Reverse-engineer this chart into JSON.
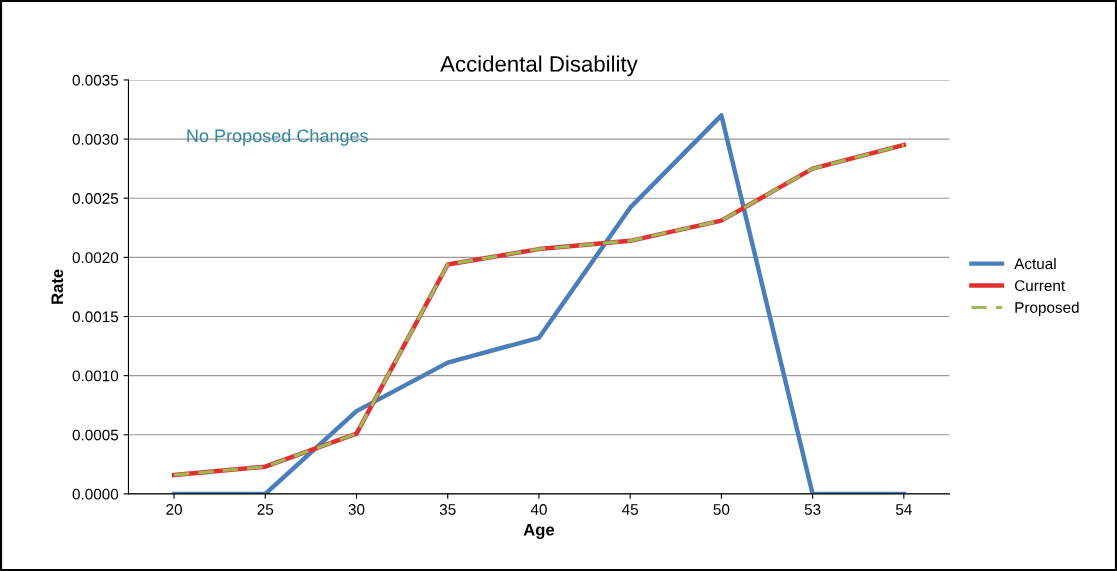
{
  "chart_data": {
    "type": "line",
    "title": "Accidental Disability",
    "xlabel": "Age",
    "ylabel": "Rate",
    "categories": [
      "20",
      "25",
      "30",
      "35",
      "40",
      "45",
      "50",
      "53",
      "54"
    ],
    "series": [
      {
        "name": "Actual",
        "color": "#4a7ebb",
        "line_style": "solid",
        "values": [
          0,
          0,
          0.0007,
          0.00111,
          0.00132,
          0.00242,
          0.0032,
          0,
          0
        ]
      },
      {
        "name": "Current",
        "color": "#e03030",
        "line_style": "solid",
        "values": [
          0.00016,
          0.00023,
          0.00051,
          0.00194,
          0.00207,
          0.00214,
          0.00231,
          0.00275,
          0.00295
        ]
      },
      {
        "name": "Proposed",
        "color": "#9bbb59",
        "line_style": "dashed",
        "values": [
          0.00016,
          0.00023,
          0.00051,
          0.00194,
          0.00207,
          0.00214,
          0.00231,
          0.00275,
          0.00295
        ]
      }
    ],
    "ylim": [
      0,
      0.0035
    ],
    "yticks": [
      {
        "value": 0,
        "label": "0.0000"
      },
      {
        "value": 0.0005,
        "label": "0.0005"
      },
      {
        "value": 0.001,
        "label": "0.0010"
      },
      {
        "value": 0.0015,
        "label": "0.0015"
      },
      {
        "value": 0.002,
        "label": "0.0020"
      },
      {
        "value": 0.0025,
        "label": "0.0025"
      },
      {
        "value": 0.003,
        "label": "0.0030"
      },
      {
        "value": 0.0035,
        "label": "0.0035"
      }
    ],
    "grid": "y",
    "legend": "right",
    "marker": "none",
    "annotations": [
      "No Proposed Changes"
    ]
  }
}
